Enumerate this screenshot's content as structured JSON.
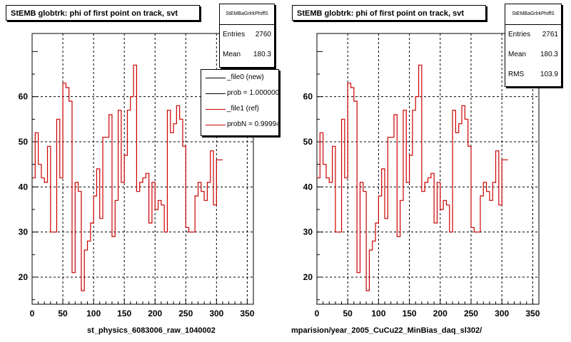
{
  "colors": {
    "ref": "#cc0000",
    "new": "#000000",
    "grid": "#000000"
  },
  "chart_data": [
    {
      "type": "line",
      "title": "StEMB globtrk: phi of first point on track, svt",
      "xlabel": "st_physics_6083006_raw_1040002",
      "ylabel": "",
      "xlim": [
        0,
        360
      ],
      "ylim": [
        14,
        74
      ],
      "xticks": [
        0,
        50,
        100,
        150,
        200,
        250,
        300,
        350
      ],
      "yticks": [
        20,
        30,
        40,
        50,
        60
      ],
      "grid": true,
      "bin_width": 5,
      "stats": {
        "name": "StEMBaGrlrkPhiffS",
        "entries": "2760",
        "mean": "180.3"
      },
      "legend": {
        "position": "top-right",
        "entries": [
          {
            "label": "_file0 (new)",
            "color": "#000000"
          },
          {
            "label": "prob = 1.000000",
            "color": "#000000"
          },
          {
            "label": "_file1 (ref)",
            "color": "#cc0000"
          },
          {
            "label": "probN = 0.99994",
            "color": "#cc0000"
          }
        ]
      },
      "series": [
        {
          "color": "#cc0000",
          "values": [
            42,
            52,
            45,
            42,
            41,
            49,
            30,
            30,
            55,
            42,
            63,
            62,
            59,
            21,
            41,
            39,
            17,
            26,
            28,
            32,
            38,
            44,
            33,
            51,
            51,
            56,
            29,
            37,
            57,
            41,
            47,
            57,
            60,
            67,
            39,
            41,
            42,
            43,
            32,
            41,
            35,
            37,
            36,
            30,
            57,
            52,
            54,
            58,
            55,
            49,
            31,
            30,
            30,
            38,
            41,
            39,
            37,
            41,
            48,
            36,
            46,
            46
          ]
        }
      ]
    },
    {
      "type": "line",
      "title": "StEMB globtrk: phi of first point on track, svt",
      "xlabel": "mparision/year_2005_CuCu22_MinBias_daq_sl302/",
      "ylabel": "",
      "xlim": [
        0,
        360
      ],
      "ylim": [
        14,
        74
      ],
      "xticks": [
        0,
        50,
        100,
        150,
        200,
        250,
        300,
        350
      ],
      "yticks": [
        20,
        30,
        40,
        50,
        60
      ],
      "grid": true,
      "bin_width": 5,
      "stats": {
        "name": "StEMBaGrlrkPhiffS",
        "entries": "2761",
        "mean": "180.3",
        "rms": "103.9"
      },
      "series": [
        {
          "color": "#cc0000",
          "values": [
            42,
            52,
            45,
            42,
            41,
            49,
            30,
            30,
            55,
            42,
            63,
            62,
            59,
            21,
            41,
            39,
            17,
            26,
            28,
            32,
            38,
            44,
            33,
            51,
            51,
            56,
            29,
            37,
            57,
            41,
            47,
            57,
            60,
            67,
            39,
            41,
            42,
            43,
            32,
            41,
            35,
            37,
            36,
            30,
            57,
            52,
            54,
            58,
            55,
            49,
            31,
            30,
            30,
            38,
            41,
            39,
            37,
            41,
            48,
            36,
            46,
            46
          ]
        }
      ]
    }
  ]
}
